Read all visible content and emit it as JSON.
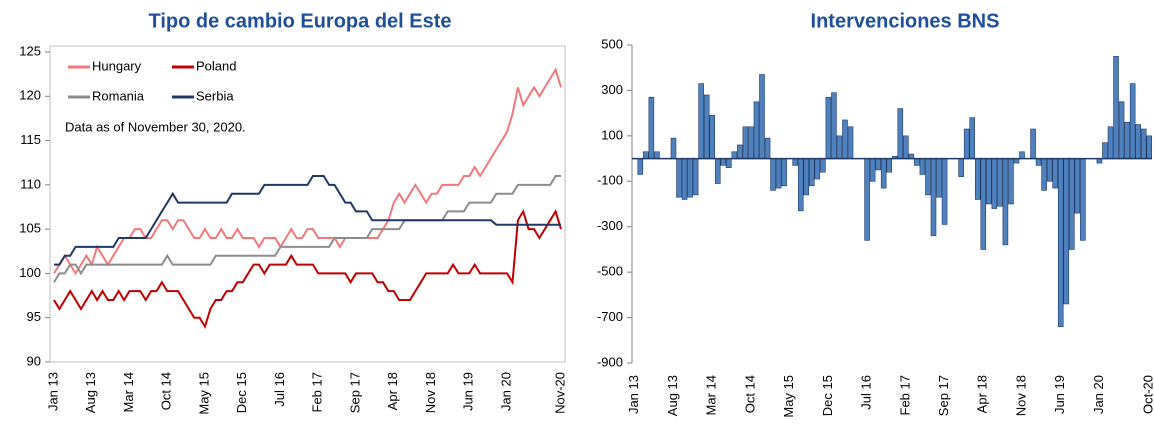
{
  "chart_data": [
    {
      "type": "line",
      "title": "Tipo de cambio Europa del Este",
      "annotation": "Data as of November 30, 2020.",
      "legend": "upper left",
      "categories": [
        "Jan 13",
        null,
        null,
        null,
        null,
        null,
        null,
        "Aug 13",
        null,
        null,
        null,
        null,
        null,
        null,
        "Mar 14",
        null,
        null,
        null,
        null,
        null,
        null,
        "Oct 14",
        null,
        null,
        null,
        null,
        null,
        null,
        "May 15",
        null,
        null,
        null,
        null,
        null,
        null,
        "Dec 15",
        null,
        null,
        null,
        null,
        null,
        null,
        "Jul 16",
        null,
        null,
        null,
        null,
        null,
        null,
        "Feb 17",
        null,
        null,
        null,
        null,
        null,
        null,
        "Sep 17",
        null,
        null,
        null,
        null,
        null,
        null,
        "Apr 18",
        null,
        null,
        null,
        null,
        null,
        null,
        "Nov 18",
        null,
        null,
        null,
        null,
        null,
        null,
        "Jun 19",
        null,
        null,
        null,
        null,
        null,
        null,
        "Jan 20",
        null,
        null,
        null,
        null,
        null,
        null,
        null,
        null,
        null,
        "Nov-20"
      ],
      "ylim": [
        90,
        125
      ],
      "yticks": [
        90,
        95,
        100,
        105,
        110,
        115,
        120,
        125
      ],
      "series": [
        {
          "name": "Hungary",
          "color": "#f4777b",
          "values": [
            100,
            101,
            102,
            101,
            100,
            101,
            102,
            101,
            103,
            102,
            101,
            102,
            103,
            104,
            104,
            105,
            105,
            104,
            104,
            105,
            106,
            106,
            105,
            106,
            106,
            105,
            104,
            104,
            105,
            104,
            104,
            105,
            104,
            104,
            105,
            104,
            104,
            104,
            103,
            104,
            104,
            104,
            103,
            104,
            105,
            104,
            104,
            105,
            105,
            104,
            104,
            104,
            104,
            103,
            104,
            104,
            104,
            104,
            104,
            104,
            104,
            105,
            106,
            108,
            109,
            108,
            109,
            110,
            109,
            108,
            109,
            109,
            110,
            110,
            110,
            110,
            111,
            111,
            112,
            111,
            112,
            113,
            114,
            115,
            116,
            118,
            121,
            119,
            120,
            121,
            120,
            121,
            122,
            123,
            121
          ]
        },
        {
          "name": "Poland",
          "color": "#c00000",
          "values": [
            97,
            96,
            97,
            98,
            97,
            96,
            97,
            98,
            97,
            98,
            97,
            97,
            98,
            97,
            98,
            98,
            98,
            97,
            98,
            98,
            99,
            98,
            98,
            98,
            97,
            96,
            95,
            95,
            94,
            96,
            97,
            97,
            98,
            98,
            99,
            99,
            100,
            101,
            101,
            100,
            101,
            101,
            101,
            101,
            102,
            101,
            101,
            101,
            101,
            100,
            100,
            100,
            100,
            100,
            100,
            99,
            100,
            100,
            100,
            100,
            99,
            99,
            98,
            98,
            97,
            97,
            97,
            98,
            99,
            100,
            100,
            100,
            100,
            100,
            101,
            100,
            100,
            100,
            101,
            100,
            100,
            100,
            100,
            100,
            100,
            99,
            106,
            107,
            105,
            105,
            104,
            105,
            106,
            107,
            105
          ]
        },
        {
          "name": "Romania",
          "color": "#8c8c8c",
          "values": [
            99,
            100,
            100,
            101,
            101,
            100,
            101,
            101,
            101,
            101,
            101,
            101,
            101,
            101,
            101,
            101,
            101,
            101,
            101,
            101,
            101,
            102,
            101,
            101,
            101,
            101,
            101,
            101,
            101,
            101,
            102,
            102,
            102,
            102,
            102,
            102,
            102,
            102,
            102,
            102,
            102,
            102,
            103,
            103,
            103,
            103,
            103,
            103,
            103,
            103,
            103,
            103,
            104,
            104,
            104,
            104,
            104,
            104,
            104,
            105,
            105,
            105,
            105,
            105,
            105,
            106,
            106,
            106,
            106,
            106,
            106,
            106,
            106,
            107,
            107,
            107,
            107,
            108,
            108,
            108,
            108,
            108,
            109,
            109,
            109,
            109,
            110,
            110,
            110,
            110,
            110,
            110,
            110,
            111,
            111
          ]
        },
        {
          "name": "Serbia",
          "color": "#1f3864",
          "values": [
            101,
            101,
            102,
            102,
            103,
            103,
            103,
            103,
            103,
            103,
            103,
            103,
            104,
            104,
            104,
            104,
            104,
            104,
            105,
            106,
            107,
            108,
            109,
            108,
            108,
            108,
            108,
            108,
            108,
            108,
            108,
            108,
            108,
            109,
            109,
            109,
            109,
            109,
            109,
            110,
            110,
            110,
            110,
            110,
            110,
            110,
            110,
            110,
            111,
            111,
            111,
            110,
            110,
            109,
            108,
            108,
            107,
            107,
            107,
            106,
            106,
            106,
            106,
            106,
            106,
            106,
            106,
            106,
            106,
            106,
            106,
            106,
            106,
            106,
            106,
            106,
            106,
            106,
            106,
            106,
            106,
            106,
            105.5,
            105.5,
            105.5,
            105.5,
            105.5,
            105.5,
            105.5,
            105.5,
            105.5,
            105.5,
            105.5,
            105.5,
            105.5
          ]
        }
      ]
    },
    {
      "type": "bar",
      "title": "Intervenciones BNS",
      "color": "#4f81bd",
      "categories": [
        "Jan 13",
        null,
        null,
        null,
        null,
        null,
        null,
        "Aug 13",
        null,
        null,
        null,
        null,
        null,
        null,
        "Mar 14",
        null,
        null,
        null,
        null,
        null,
        null,
        "Oct 14",
        null,
        null,
        null,
        null,
        null,
        null,
        "May 15",
        null,
        null,
        null,
        null,
        null,
        null,
        "Dec 15",
        null,
        null,
        null,
        null,
        null,
        null,
        "Jul 16",
        null,
        null,
        null,
        null,
        null,
        null,
        "Feb 17",
        null,
        null,
        null,
        null,
        null,
        null,
        "Sep 17",
        null,
        null,
        null,
        null,
        null,
        null,
        "Apr 18",
        null,
        null,
        null,
        null,
        null,
        null,
        "Nov 18",
        null,
        null,
        null,
        null,
        null,
        null,
        "Jun 19",
        null,
        null,
        null,
        null,
        null,
        null,
        "Jan 20",
        null,
        null,
        null,
        null,
        null,
        null,
        null,
        null,
        "Oct-20"
      ],
      "values": [
        0,
        -70,
        30,
        270,
        30,
        0,
        0,
        90,
        -170,
        -180,
        -170,
        -160,
        330,
        280,
        190,
        -110,
        -30,
        -40,
        30,
        60,
        140,
        140,
        250,
        370,
        90,
        -140,
        -130,
        -120,
        0,
        -30,
        -230,
        -160,
        -120,
        -90,
        -60,
        270,
        290,
        100,
        170,
        140,
        0,
        0,
        -360,
        -100,
        -50,
        -130,
        -60,
        10,
        220,
        100,
        20,
        -30,
        -70,
        -160,
        -340,
        -170,
        -290,
        0,
        0,
        -80,
        130,
        180,
        -180,
        -400,
        -200,
        -220,
        -210,
        -380,
        -200,
        -20,
        30,
        0,
        130,
        -30,
        -140,
        -100,
        -130,
        -740,
        -640,
        -400,
        -240,
        -360,
        0,
        0,
        -20,
        70,
        140,
        450,
        250,
        160,
        330,
        150,
        130,
        100
      ],
      "ylim": [
        -900,
        500
      ],
      "yticks": [
        -900,
        -700,
        -500,
        -300,
        -100,
        100,
        300,
        500
      ]
    }
  ]
}
